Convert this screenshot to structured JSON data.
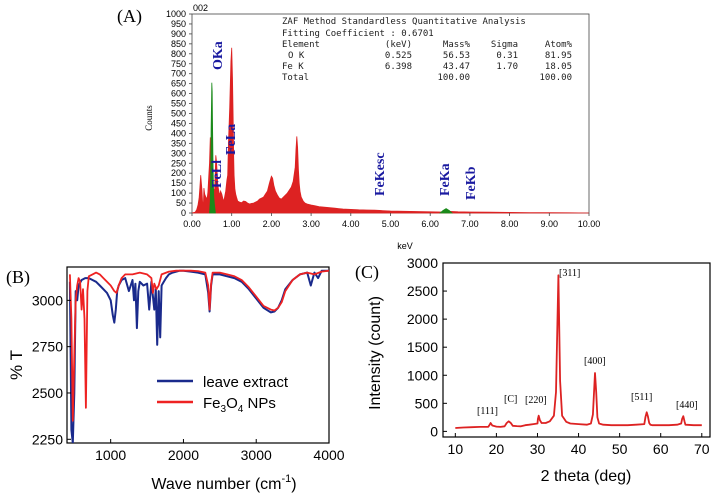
{
  "panels": {
    "a_label": "(A)",
    "b_label": "(B)",
    "c_label": "(C)"
  },
  "chart_data": [
    {
      "id": "A",
      "type": "line",
      "title": "002",
      "xlabel": "keV",
      "ylabel": "Counts",
      "xlim": [
        0,
        10
      ],
      "ylim": [
        0,
        1000
      ],
      "xticks": [
        "0.00",
        "1.00",
        "2.00",
        "3.00",
        "4.00",
        "5.00",
        "6.00",
        "7.00",
        "8.00",
        "9.00",
        "10.00"
      ],
      "yticks": [
        "0",
        "50",
        "100",
        "150",
        "200",
        "250",
        "300",
        "350",
        "400",
        "450",
        "500",
        "550",
        "600",
        "650",
        "700",
        "750",
        "800",
        "850",
        "900",
        "950",
        "1000"
      ],
      "series": [
        {
          "name": "spectrum",
          "color": "#dd2222",
          "x": [
            0,
            0.08,
            0.12,
            0.15,
            0.18,
            0.2,
            0.22,
            0.25,
            0.27,
            0.28,
            0.29,
            0.3,
            0.32,
            0.35,
            0.38,
            0.4,
            0.42,
            0.44,
            0.46,
            0.48,
            0.5,
            0.52,
            0.53,
            0.55,
            0.57,
            0.6,
            0.62,
            0.65,
            0.68,
            0.7,
            0.72,
            0.75,
            0.78,
            0.8,
            0.82,
            0.85,
            0.88,
            0.9,
            0.92,
            0.95,
            0.98,
            1.0,
            1.02,
            1.04,
            1.05,
            1.06,
            1.08,
            1.1,
            1.12,
            1.15,
            1.2,
            1.25,
            1.3,
            1.35,
            1.4,
            1.45,
            1.5,
            1.55,
            1.6,
            1.65,
            1.7,
            1.75,
            1.8,
            1.85,
            1.9,
            1.95,
            2.0,
            2.03,
            2.06,
            2.1,
            2.15,
            2.2,
            2.25,
            2.3,
            2.35,
            2.4,
            2.45,
            2.5,
            2.55,
            2.6,
            2.62,
            2.64,
            2.66,
            2.68,
            2.7,
            2.72,
            2.75,
            2.8,
            2.85,
            2.9,
            3.0,
            3.1,
            3.2,
            3.3,
            3.4,
            3.5,
            3.6,
            3.7,
            3.8,
            4.0,
            4.2,
            4.4,
            4.6,
            4.8,
            5.0,
            5.5,
            6.0,
            6.3,
            6.4,
            6.5,
            6.7,
            7.0,
            7.5,
            8.0,
            8.5,
            9.0,
            9.5,
            10.0
          ],
          "y": [
            0,
            4,
            18,
            40,
            75,
            130,
            190,
            120,
            45,
            30,
            60,
            125,
            95,
            80,
            70,
            105,
            180,
            250,
            380,
            235,
            210,
            170,
            80,
            120,
            110,
            290,
            255,
            140,
            105,
            90,
            110,
            95,
            70,
            60,
            80,
            110,
            165,
            190,
            360,
            530,
            760,
            830,
            680,
            430,
            280,
            190,
            120,
            95,
            80,
            60,
            55,
            52,
            60,
            58,
            50,
            45,
            48,
            50,
            55,
            60,
            70,
            75,
            80,
            95,
            110,
            150,
            185,
            175,
            140,
            110,
            90,
            75,
            70,
            80,
            90,
            100,
            115,
            130,
            160,
            230,
            320,
            385,
            330,
            220,
            150,
            110,
            80,
            60,
            50,
            45,
            40,
            36,
            32,
            30,
            28,
            26,
            24,
            22,
            20,
            18,
            16,
            15,
            14,
            12,
            10,
            8,
            6,
            5,
            6,
            8,
            6,
            5,
            4,
            3,
            2,
            2,
            1,
            0
          ]
        },
        {
          "name": "overlay",
          "color": "#1a8a1a",
          "x": [
            0.44,
            0.46,
            0.47,
            0.48,
            0.5,
            0.51,
            0.52,
            0.53,
            0.54,
            0.55,
            0.57,
            0.59,
            6.25,
            6.32,
            6.4,
            6.48,
            6.55
          ],
          "y": [
            0,
            60,
            200,
            420,
            655,
            610,
            420,
            260,
            150,
            80,
            35,
            0,
            0,
            12,
            22,
            12,
            0
          ]
        }
      ],
      "annotations": [
        "OKa",
        "FeLl",
        "FeLa",
        "FeKesc",
        "FeKa",
        "FeKb"
      ],
      "table": {
        "title": "ZAF Method Standardless Quantitative Analysis",
        "fitting": "Fitting Coefficient : 0.6701",
        "header": [
          "Element",
          "(keV)",
          "Mass%",
          "Sigma",
          "Atom%"
        ],
        "rows": [
          [
            "O K",
            "0.525",
            "56.53",
            "0.31",
            "81.95"
          ],
          [
            "Fe K",
            "6.398",
            "43.47",
            "1.70",
            "18.05"
          ],
          [
            "Total",
            "",
            "100.00",
            "",
            "100.00"
          ]
        ]
      }
    },
    {
      "id": "B",
      "type": "line",
      "xlabel_main": "Wave number (cm",
      "xlabel_sup": "-1",
      "xlabel_end": ")",
      "ylabel": "% T",
      "xlim": [
        400,
        4000
      ],
      "ylim": [
        2230,
        3180
      ],
      "xticks": [
        "1000",
        "2000",
        "3000",
        "4000"
      ],
      "yticks": [
        "2250",
        "2500",
        "2750",
        "3000"
      ],
      "xtick_values": [
        1000,
        2000,
        3000,
        4000
      ],
      "ytick_values": [
        2250,
        2500,
        2750,
        3000
      ],
      "legend": {
        "position": "center-left",
        "entries": [
          {
            "label": "leave extract",
            "color": "#1a2a8c"
          },
          {
            "label_parts": [
              "Fe",
              "3",
              "O",
              "4",
              " NPs"
            ],
            "color": "#ee2222"
          }
        ]
      },
      "series": [
        {
          "name": "leave extract",
          "color": "#1a2a8c",
          "x": [
            440,
            460,
            480,
            500,
            520,
            540,
            560,
            600,
            650,
            700,
            750,
            800,
            850,
            900,
            950,
            1000,
            1030,
            1050,
            1070,
            1090,
            1110,
            1150,
            1200,
            1250,
            1300,
            1320,
            1340,
            1360,
            1380,
            1400,
            1450,
            1500,
            1530,
            1560,
            1600,
            1620,
            1640,
            1660,
            1680,
            1700,
            1730,
            1760,
            1800,
            1850,
            1900,
            1950,
            2000,
            2100,
            2200,
            2300,
            2340,
            2360,
            2380,
            2400,
            2500,
            2600,
            2700,
            2800,
            2900,
            3000,
            3100,
            3200,
            3250,
            3300,
            3350,
            3400,
            3500,
            3600,
            3700,
            3750,
            3800,
            3850,
            3900,
            4000
          ],
          "y": [
            3100,
            2300,
            2230,
            2500,
            3050,
            3000,
            3080,
            3110,
            3120,
            3120,
            3110,
            3100,
            3080,
            3060,
            3040,
            3000,
            2920,
            2880,
            2950,
            3050,
            3080,
            3110,
            3120,
            3050,
            3110,
            3000,
            3090,
            2850,
            3050,
            3100,
            3080,
            3090,
            2950,
            3100,
            2950,
            3060,
            2760,
            3050,
            2800,
            3080,
            3100,
            3120,
            3140,
            3150,
            3155,
            3160,
            3160,
            3155,
            3150,
            3140,
            3040,
            2940,
            3080,
            3140,
            3140,
            3130,
            3120,
            3100,
            3060,
            3010,
            2960,
            2935,
            2940,
            2960,
            3000,
            3060,
            3110,
            3140,
            3150,
            3080,
            3150,
            3120,
            3160,
            3160
          ]
        },
        {
          "name": "Fe3O4 NPs",
          "color": "#ee2222",
          "x": [
            440,
            460,
            480,
            500,
            520,
            540,
            560,
            580,
            600,
            620,
            640,
            660,
            680,
            700,
            750,
            800,
            850,
            900,
            950,
            1000,
            1050,
            1080,
            1110,
            1150,
            1200,
            1300,
            1400,
            1500,
            1560,
            1580,
            1600,
            1630,
            1660,
            1700,
            1800,
            1900,
            2000,
            2100,
            2200,
            2300,
            2340,
            2360,
            2380,
            2400,
            2500,
            2600,
            2700,
            2800,
            2900,
            3000,
            3100,
            3200,
            3250,
            3300,
            3350,
            3400,
            3500,
            3600,
            3700,
            3800,
            3900,
            4000
          ],
          "y": [
            3140,
            2900,
            2350,
            2700,
            3000,
            3080,
            3120,
            3100,
            2950,
            3060,
            2900,
            2420,
            3050,
            3130,
            3140,
            3150,
            3140,
            3120,
            3100,
            3080,
            3050,
            3040,
            3080,
            3120,
            3140,
            3140,
            3150,
            3140,
            3120,
            3040,
            3090,
            3060,
            3080,
            3140,
            3155,
            3160,
            3160,
            3160,
            3158,
            3150,
            3080,
            2950,
            3090,
            3150,
            3150,
            3140,
            3130,
            3110,
            3070,
            3020,
            2970,
            2950,
            2945,
            2960,
            2990,
            3050,
            3110,
            3140,
            3150,
            3140,
            3155,
            3160
          ]
        }
      ]
    },
    {
      "id": "C",
      "type": "line",
      "xlabel": "2 theta (deg)",
      "ylabel": "Intensity (count)",
      "xlim": [
        7,
        72
      ],
      "ylim": [
        -100,
        3000
      ],
      "xticks": [
        "10",
        "20",
        "30",
        "40",
        "50",
        "60",
        "70"
      ],
      "yticks": [
        "0",
        "500",
        "1000",
        "1500",
        "2000",
        "2500",
        "3000"
      ],
      "xtick_values": [
        10,
        20,
        30,
        40,
        50,
        60,
        70
      ],
      "ytick_values": [
        0,
        500,
        1000,
        1500,
        2000,
        2500,
        3000
      ],
      "series": [
        {
          "name": "XRD",
          "color": "#dd2222",
          "x": [
            10,
            12,
            14,
            16,
            18,
            18.3,
            18.6,
            19,
            20,
            21,
            22,
            22.5,
            23,
            23.5,
            24,
            25,
            26,
            27,
            28,
            29,
            30,
            30.1,
            30.3,
            30.6,
            31,
            32,
            33,
            34,
            34.5,
            35.1,
            35.5,
            36,
            37,
            38,
            40,
            42,
            43,
            43.5,
            43.9,
            44,
            44.3,
            44.6,
            45,
            46,
            48,
            50,
            52,
            54,
            56,
            56.3,
            56.6,
            56.9,
            57.2,
            57.5,
            58,
            60,
            62,
            64,
            65,
            65.2,
            65.5,
            65.8,
            66,
            68,
            70
          ],
          "y": [
            60,
            70,
            75,
            80,
            80,
            110,
            150,
            105,
            85,
            80,
            90,
            150,
            180,
            150,
            100,
            95,
            90,
            110,
            120,
            130,
            140,
            220,
            280,
            200,
            150,
            150,
            180,
            280,
            700,
            2780,
            900,
            280,
            170,
            140,
            130,
            120,
            140,
            300,
            900,
            1040,
            700,
            250,
            140,
            120,
            110,
            110,
            110,
            120,
            130,
            260,
            340,
            260,
            150,
            120,
            110,
            110,
            110,
            120,
            140,
            220,
            270,
            180,
            120,
            110,
            110
          ]
        }
      ],
      "annotations": [
        "[111]",
        "[C]",
        "[220]",
        "[311]",
        "[400]",
        "[511]",
        "[440]"
      ]
    }
  ]
}
